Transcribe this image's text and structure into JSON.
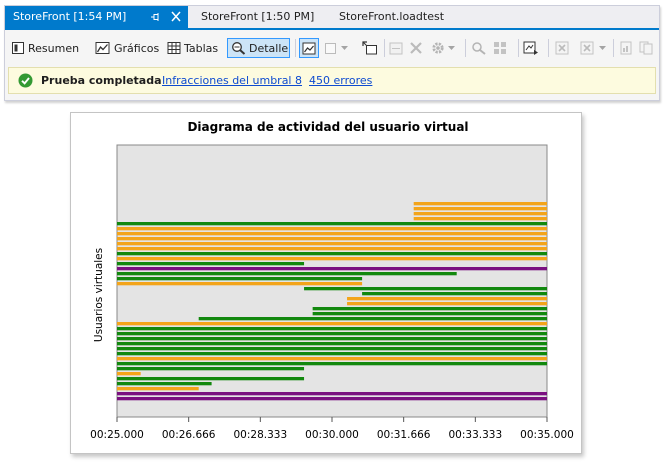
{
  "tabs": [
    {
      "label": "StoreFront [1:54 PM]",
      "active": true
    },
    {
      "label": "StoreFront [1:50 PM]",
      "active": false
    },
    {
      "label": "StoreFront.loadtest",
      "active": false
    }
  ],
  "toolbar": {
    "summary_label": "Resumen",
    "graphs_label": "Gráficos",
    "tables_label": "Tablas",
    "detail_label": "Detalle"
  },
  "infobar": {
    "status": "Prueba completada",
    "threshold_link": "Infracciones del umbral 8",
    "errors_link": "450 errores"
  },
  "colors": {
    "passed": "#12880e",
    "failed": "#f3a41a",
    "aborted": "#7a1180",
    "accent": "#007acc"
  },
  "icons": [
    "pin-icon",
    "close-icon",
    "summary-icon",
    "graphs-icon",
    "tables-icon",
    "detail-icon",
    "checkmark-icon"
  ],
  "chart_data": {
    "type": "gantt",
    "title": "Diagrama de actividad del usuario virtual",
    "ylabel": "Usuarios virtuales",
    "xlabel": "",
    "x_ticks": [
      "00:25.000",
      "00:26.666",
      "00:28.333",
      "00:30.000",
      "00:31.666",
      "00:33.333",
      "00:35.000"
    ],
    "xlim": [
      0,
      10
    ],
    "grid": false,
    "bars": [
      {
        "start": 6.9,
        "end": 10,
        "status": "failed"
      },
      {
        "start": 6.9,
        "end": 10,
        "status": "failed"
      },
      {
        "start": 6.9,
        "end": 10,
        "status": "failed"
      },
      {
        "start": 6.9,
        "end": 10,
        "status": "failed"
      },
      {
        "start": 0,
        "end": 10,
        "status": "passed"
      },
      {
        "start": 0,
        "end": 10,
        "status": "failed"
      },
      {
        "start": 0,
        "end": 10,
        "status": "failed"
      },
      {
        "start": 0,
        "end": 10,
        "status": "failed"
      },
      {
        "start": 0,
        "end": 10,
        "status": "failed"
      },
      {
        "start": 0,
        "end": 10,
        "status": "failed"
      },
      {
        "start": 0,
        "end": 10,
        "status": "passed"
      },
      {
        "start": 0,
        "end": 10,
        "status": "failed"
      },
      {
        "start": 0,
        "end": 4.35,
        "status": "passed"
      },
      {
        "start": 0,
        "end": 10,
        "status": "aborted"
      },
      {
        "start": 0,
        "end": 7.9,
        "status": "passed"
      },
      {
        "start": 0,
        "end": 5.7,
        "status": "passed"
      },
      {
        "start": 0,
        "end": 5.7,
        "status": "failed"
      },
      {
        "start": 4.35,
        "end": 10,
        "status": "passed"
      },
      {
        "start": 5.7,
        "end": 10,
        "status": "passed"
      },
      {
        "start": 5.35,
        "end": 10,
        "status": "failed"
      },
      {
        "start": 5.35,
        "end": 10,
        "status": "failed"
      },
      {
        "start": 4.55,
        "end": 10,
        "status": "passed"
      },
      {
        "start": 4.55,
        "end": 10,
        "status": "passed"
      },
      {
        "start": 1.9,
        "end": 10,
        "status": "passed"
      },
      {
        "start": 0,
        "end": 10,
        "status": "failed"
      },
      {
        "start": 0,
        "end": 10,
        "status": "passed"
      },
      {
        "start": 0,
        "end": 10,
        "status": "passed"
      },
      {
        "start": 0,
        "end": 10,
        "status": "passed"
      },
      {
        "start": 0,
        "end": 10,
        "status": "passed"
      },
      {
        "start": 0,
        "end": 10,
        "status": "passed"
      },
      {
        "start": 0,
        "end": 10,
        "status": "passed"
      },
      {
        "start": 0,
        "end": 10,
        "status": "failed"
      },
      {
        "start": 0,
        "end": 10,
        "status": "passed"
      },
      {
        "start": 0,
        "end": 4.35,
        "status": "passed"
      },
      {
        "start": 0,
        "end": 0.55,
        "status": "failed"
      },
      {
        "start": 0,
        "end": 4.35,
        "status": "passed"
      },
      {
        "start": 0,
        "end": 2.2,
        "status": "passed"
      },
      {
        "start": 0,
        "end": 1.9,
        "status": "failed"
      },
      {
        "start": 0,
        "end": 10,
        "status": "aborted"
      },
      {
        "start": 0,
        "end": 10,
        "status": "aborted"
      }
    ]
  }
}
